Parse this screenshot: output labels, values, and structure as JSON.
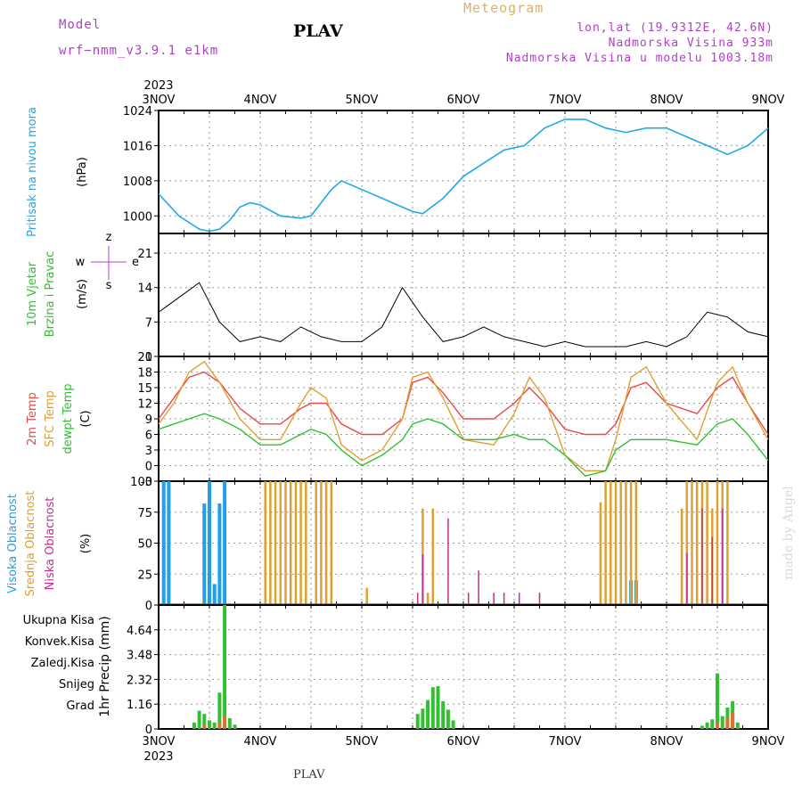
{
  "header": {
    "model_label": "Model",
    "model_name": "wrf−nmm_v3.9.1 e1km",
    "title": "PLAV",
    "meteogram": "Meteogram",
    "lonlat": "lon,lat (19.9312E, 42.6N)",
    "elevation": "Nadmorska Visina 933m",
    "model_elevation": "Nadmorska Visina u modelu 1003.18m",
    "footer_station": "PLAV",
    "credit": "made by Angel"
  },
  "x_axis": {
    "year": "2023",
    "ticks": [
      "3NOV",
      "4NOV",
      "5NOV",
      "6NOV",
      "7NOV",
      "8NOV",
      "9NOV"
    ]
  },
  "colors": {
    "pressure": "#20a8e8",
    "t2m": "#e84848",
    "sfc": "#e0a030",
    "dew": "#30c030",
    "high_cloud": "#20a0e8",
    "mid_cloud": "#e0a030",
    "low_cloud": "#c03090",
    "total_precip": "#30c030",
    "conv_precip": "#e07030"
  },
  "panels": {
    "pressure": {
      "ylabel_lines": [
        "Pritisak na nivou mora",
        "(hPa)"
      ]
    },
    "wind": {
      "ylabel_lines": [
        "10m Vjetar",
        "Brzina i Pravac",
        "(m/s)"
      ],
      "compass": [
        "z",
        "w",
        "e",
        "s"
      ]
    },
    "temp": {
      "ylabel_lines": [
        "2m Temp",
        "SFC Temp",
        "dewpt Temp",
        "(C)"
      ]
    },
    "cloud": {
      "ylabel_lines": [
        "Visoka Oblacnost",
        "Srednja Oblacnost",
        "Niska Oblacnost",
        "(%)"
      ]
    },
    "precip": {
      "ylabel": "1hr Precip (mm)",
      "legend": [
        "Ukupna Kisa",
        "Konvek.Kisa",
        "Zaledj.Kisa",
        "Snijeg",
        "Grad"
      ]
    }
  },
  "chart_data": [
    {
      "type": "line",
      "name": "pressure",
      "ylim": [
        996,
        1024
      ],
      "yticks": [
        1000,
        1008,
        1016,
        1024
      ],
      "x": [
        0,
        0.2,
        0.4,
        0.5,
        0.6,
        0.7,
        0.8,
        0.9,
        1.0,
        1.2,
        1.4,
        1.5,
        1.7,
        1.8,
        2.0,
        2.3,
        2.5,
        2.6,
        2.8,
        3.0,
        3.2,
        3.4,
        3.6,
        3.8,
        4.0,
        4.2,
        4.4,
        4.6,
        4.8,
        5.0,
        5.2,
        5.4,
        5.6,
        5.8,
        6.0
      ],
      "values": [
        1005,
        1000,
        997,
        996.5,
        997,
        999,
        1002,
        1003,
        1002.5,
        1000,
        999.5,
        1000,
        1006,
        1008,
        1006,
        1003,
        1001,
        1000.5,
        1004,
        1009,
        1012,
        1015,
        1016,
        1020,
        1022,
        1022,
        1020,
        1019,
        1020,
        1020,
        1018,
        1016,
        1014,
        1016,
        1020
      ]
    },
    {
      "type": "line",
      "name": "wind_speed",
      "ylim": [
        0,
        25
      ],
      "yticks": [
        0,
        7,
        14,
        21
      ],
      "x": [
        0,
        0.2,
        0.4,
        0.6,
        0.8,
        1.0,
        1.2,
        1.4,
        1.6,
        1.8,
        2.0,
        2.2,
        2.4,
        2.6,
        2.8,
        3.0,
        3.2,
        3.4,
        3.6,
        3.8,
        4.0,
        4.2,
        4.4,
        4.6,
        4.8,
        5.0,
        5.2,
        5.4,
        5.6,
        5.8,
        6.0
      ],
      "values": [
        9,
        12,
        15,
        7,
        3,
        4,
        3,
        6,
        4,
        3,
        3,
        6,
        14,
        8,
        3,
        4,
        6,
        4,
        3,
        2,
        3,
        2,
        2,
        2,
        3,
        2,
        4,
        9,
        8,
        5,
        4
      ]
    },
    {
      "type": "line",
      "name": "temperature",
      "ylim": [
        -3,
        21
      ],
      "yticks": [
        -3,
        0,
        3,
        6,
        9,
        12,
        15,
        18,
        21
      ],
      "x": [
        0,
        0.15,
        0.3,
        0.45,
        0.6,
        0.8,
        1.0,
        1.2,
        1.4,
        1.5,
        1.65,
        1.8,
        2.0,
        2.2,
        2.4,
        2.5,
        2.65,
        2.8,
        3.0,
        3.3,
        3.5,
        3.65,
        3.8,
        4.0,
        4.2,
        4.4,
        4.5,
        4.65,
        4.8,
        5.0,
        5.3,
        5.5,
        5.65,
        5.8,
        6.0
      ],
      "series": [
        {
          "name": "2m Temp",
          "values": [
            9,
            13,
            17,
            18,
            16,
            11,
            8,
            8,
            11,
            12,
            12,
            8,
            6,
            6,
            9,
            16,
            17,
            14,
            9,
            9,
            12,
            15,
            12,
            7,
            6,
            6,
            8,
            15,
            16,
            12,
            10,
            15,
            17,
            12,
            6
          ]
        },
        {
          "name": "SFC Temp",
          "values": [
            8,
            12,
            18,
            20,
            16,
            9,
            5,
            5,
            12,
            15,
            13,
            4,
            1,
            3,
            9,
            17,
            18,
            13,
            5,
            4,
            10,
            17,
            13,
            2,
            -1,
            -1,
            5,
            17,
            19,
            12,
            5,
            16,
            19,
            12,
            5
          ]
        },
        {
          "name": "dewpt Temp",
          "values": [
            7,
            8,
            9,
            10,
            9,
            7,
            4,
            4,
            6,
            7,
            6,
            3,
            0,
            2,
            5,
            8,
            9,
            8,
            5,
            5,
            6,
            5,
            5,
            2,
            -2,
            -1,
            3,
            5,
            5,
            5,
            4,
            8,
            9,
            6,
            1
          ]
        }
      ]
    },
    {
      "type": "bar",
      "name": "cloud_cover",
      "ylim": [
        0,
        100
      ],
      "yticks": [
        0,
        25,
        50,
        75,
        100
      ],
      "series": [
        {
          "name": "Visoka Oblacnost",
          "x": [
            0.05,
            0.1,
            0.45,
            0.5,
            0.55,
            0.6,
            0.65,
            2.05,
            2.3,
            4.6,
            4.65,
            4.7
          ],
          "values": [
            100,
            100,
            82,
            100,
            17,
            82,
            100,
            0,
            0,
            0,
            20,
            20
          ]
        },
        {
          "name": "Srednja Oblacnost",
          "x": [
            1.05,
            1.1,
            1.15,
            1.2,
            1.25,
            1.3,
            1.35,
            1.4,
            1.45,
            1.55,
            1.6,
            1.65,
            1.7,
            2.05,
            2.6,
            2.65,
            2.7,
            4.35,
            4.4,
            4.45,
            4.5,
            4.55,
            4.6,
            4.65,
            4.7,
            5.15,
            5.2,
            5.25,
            5.3,
            5.35,
            5.4,
            5.45,
            5.5,
            5.55,
            5.6
          ],
          "values": [
            100,
            100,
            100,
            100,
            100,
            100,
            100,
            100,
            100,
            100,
            100,
            100,
            100,
            14,
            78,
            10,
            78,
            83,
            100,
            100,
            100,
            100,
            100,
            100,
            100,
            78,
            100,
            100,
            100,
            100,
            100,
            78,
            100,
            100,
            100
          ]
        },
        {
          "name": "Niska Oblacnost",
          "x": [
            2.55,
            2.6,
            2.85,
            3.05,
            3.15,
            3.3,
            3.4,
            3.55,
            3.75,
            5.2,
            5.35,
            5.45,
            5.55
          ],
          "values": [
            10,
            41,
            70,
            10,
            28,
            10,
            10,
            10,
            10,
            42,
            78,
            55,
            78
          ]
        }
      ]
    },
    {
      "type": "bar",
      "name": "precipitation",
      "ylim": [
        0,
        5.8
      ],
      "yticks": [
        0,
        1.16,
        2.32,
        3.48,
        4.64
      ],
      "series": [
        {
          "name": "Ukupna Kisa",
          "x": [
            0.35,
            0.4,
            0.45,
            0.5,
            0.55,
            0.6,
            0.65,
            0.7,
            0.75,
            2.55,
            2.6,
            2.65,
            2.7,
            2.75,
            2.8,
            2.85,
            2.9,
            5.35,
            5.4,
            5.45,
            5.5,
            5.55,
            5.6,
            5.65,
            5.7
          ],
          "values": [
            0.3,
            0.85,
            0.7,
            0.4,
            0.3,
            1.7,
            5.8,
            0.5,
            0.2,
            0.7,
            0.95,
            1.35,
            1.95,
            2.0,
            1.3,
            0.9,
            0.4,
            0.15,
            0.3,
            0.45,
            2.6,
            0.6,
            1.0,
            1.3,
            0.3
          ]
        },
        {
          "name": "Konvek.Kisa",
          "x": [
            0.45,
            0.6,
            0.65,
            5.5,
            5.6,
            5.65
          ],
          "values": [
            0.2,
            0.3,
            0.6,
            0.3,
            0.5,
            0.8
          ]
        }
      ]
    }
  ]
}
